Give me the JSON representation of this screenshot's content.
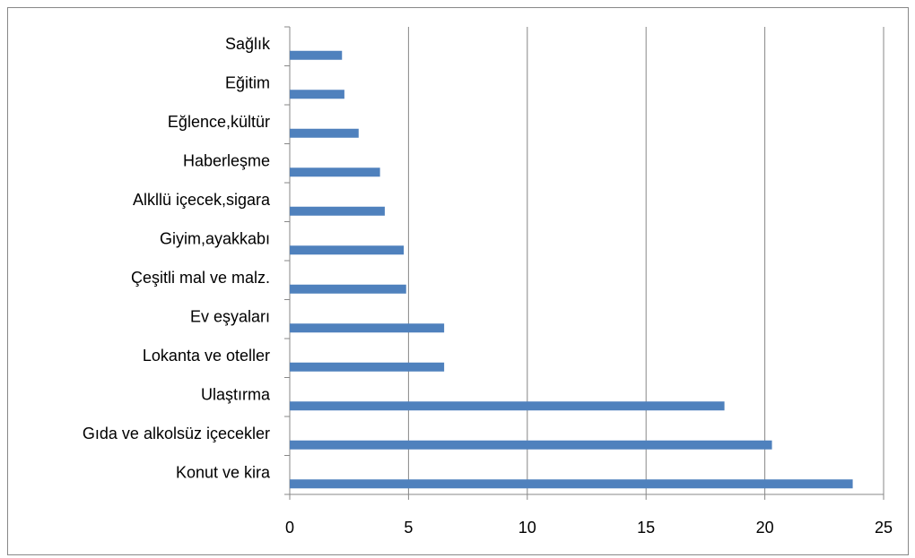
{
  "chart_data": {
    "type": "bar",
    "orientation": "horizontal",
    "categories": [
      "Sağlık",
      "Eğitim",
      "Eğlence,kültür",
      "Haberleşme",
      "Alkllü içecek,sigara",
      "Giyim,ayakkabı",
      "Çeşitli mal ve malz.",
      "Ev eşyaları",
      "Lokanta ve oteller",
      "Ulaştırma",
      "Gıda ve alkolsüz içecekler",
      "Konut ve kira"
    ],
    "values": [
      2.2,
      2.3,
      2.9,
      3.8,
      4.0,
      4.8,
      4.9,
      6.5,
      6.5,
      18.3,
      20.3,
      23.7
    ],
    "color": "#4f81bd",
    "xlim": [
      0,
      25
    ],
    "xticks": [
      0,
      5,
      10,
      15,
      20,
      25
    ],
    "grid": true
  }
}
